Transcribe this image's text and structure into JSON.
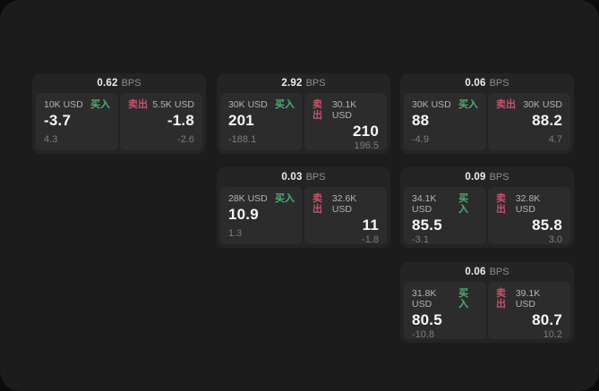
{
  "page": {
    "bps_unit": "BPS",
    "buy_label": "买入",
    "sell_label": "卖出"
  },
  "colors": {
    "buy": "#4fae73",
    "sell": "#c9506b",
    "canvas_bg": "#1c1c1c",
    "card_bg": "#242424",
    "panel_bg": "#2c2c2c"
  },
  "cards": [
    {
      "bps": "0.62",
      "col": 0,
      "row": 0,
      "buy": {
        "size": "10K USD",
        "price": "-3.7",
        "delta": "4.3"
      },
      "sell": {
        "size": "5.5K USD",
        "price": "-1.8",
        "delta": "-2.6"
      }
    },
    {
      "bps": "2.92",
      "col": 1,
      "row": 0,
      "buy": {
        "size": "30K USD",
        "price": "201",
        "delta": "-188.1"
      },
      "sell": {
        "size": "30.1K USD",
        "price": "210",
        "delta": "196.5"
      }
    },
    {
      "bps": "0.03",
      "col": 1,
      "row": 1,
      "buy": {
        "size": "28K USD",
        "price": "10.9",
        "delta": "1.3"
      },
      "sell": {
        "size": "32.6K USD",
        "price": "11",
        "delta": "-1.8"
      }
    },
    {
      "bps": "0.06",
      "col": 2,
      "row": 0,
      "buy": {
        "size": "30K USD",
        "price": "88",
        "delta": "-4.9"
      },
      "sell": {
        "size": "30K USD",
        "price": "88.2",
        "delta": "4.7"
      }
    },
    {
      "bps": "0.09",
      "col": 2,
      "row": 1,
      "buy": {
        "size": "34.1K USD",
        "price": "85.5",
        "delta": "-3.1"
      },
      "sell": {
        "size": "32.8K USD",
        "price": "85.8",
        "delta": "3.0"
      }
    },
    {
      "bps": "0.06",
      "col": 2,
      "row": 2,
      "buy": {
        "size": "31.8K USD",
        "price": "80.5",
        "delta": "-10.8"
      },
      "sell": {
        "size": "39.1K USD",
        "price": "80.7",
        "delta": "10.2"
      }
    }
  ]
}
